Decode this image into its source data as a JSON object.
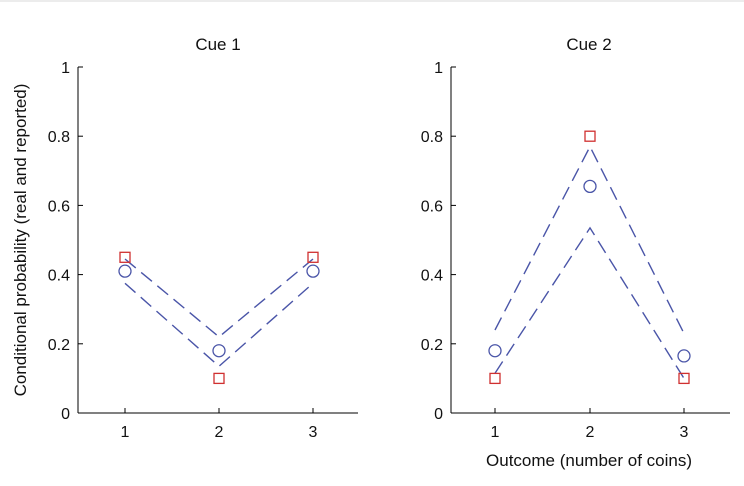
{
  "chart_data": [
    {
      "type": "line",
      "title": "Cue 1",
      "xlabel": "",
      "ylabel": "Conditional probability (real and reported)",
      "categories": [
        "1",
        "2",
        "3"
      ],
      "ylim": [
        0,
        1
      ],
      "yticks": [
        "0",
        "0.2",
        "0.4",
        "0.6",
        "0.8",
        "1"
      ],
      "series": [
        {
          "marker": "square",
          "color": "#d03030",
          "values": [
            0.45,
            0.1,
            0.45
          ]
        },
        {
          "marker": "circle",
          "color": "#4a55a8",
          "values": [
            0.41,
            0.18,
            0.41
          ]
        },
        {
          "marker": "dashed",
          "color": "#4a55a8",
          "values": [
            0.445,
            0.22,
            0.445
          ]
        },
        {
          "marker": "dashed",
          "color": "#4a55a8",
          "values": [
            0.375,
            0.135,
            0.375
          ]
        }
      ]
    },
    {
      "type": "line",
      "title": "Cue 2",
      "xlabel": "Outcome (number of coins)",
      "ylabel": "",
      "categories": [
        "1",
        "2",
        "3"
      ],
      "ylim": [
        0,
        1
      ],
      "yticks": [
        "0",
        "0.2",
        "0.4",
        "0.6",
        "0.8",
        "1"
      ],
      "series": [
        {
          "marker": "square",
          "color": "#d03030",
          "values": [
            0.1,
            0.8,
            0.1
          ]
        },
        {
          "marker": "circle",
          "color": "#4a55a8",
          "values": [
            0.18,
            0.655,
            0.165
          ]
        },
        {
          "marker": "dashed",
          "color": "#4a55a8",
          "values": [
            0.24,
            0.77,
            0.23
          ]
        },
        {
          "marker": "dashed",
          "color": "#4a55a8",
          "values": [
            0.115,
            0.535,
            0.1
          ]
        }
      ]
    }
  ]
}
